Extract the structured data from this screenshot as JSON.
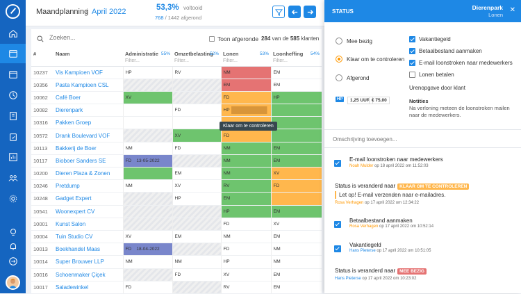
{
  "topbar": {
    "title": "Maandplanning",
    "separator": "/",
    "month": "April 2022",
    "percent": "53,3%",
    "percent_label": "voltooid",
    "done_count": "768",
    "total_label": "/ 1442 afgerond"
  },
  "list": {
    "search_placeholder": "Zoeken...",
    "show_done_label": "Toon afgeronde",
    "result_shown": "284",
    "result_mid": "van de",
    "result_total": "585",
    "result_unit": "klanten",
    "columns": {
      "num": "#",
      "name": "Naam",
      "admin": "Administratie",
      "admin_pct": "55%",
      "omzet": "Omzetbelasting",
      "omzet_pct": "52%",
      "lonen": "Lonen",
      "lonen_pct": "53%",
      "loonheffing": "Loonheffing",
      "loonheffing_pct": "54%",
      "filter": "Filter..."
    },
    "rows": [
      {
        "num": "10237",
        "name": "Vis Kampioen VOF",
        "c": [
          {
            "t": "HP"
          },
          {
            "t": "RV"
          },
          {
            "t": "NM",
            "s": "r"
          },
          {
            "t": "EM"
          }
        ]
      },
      {
        "num": "10356",
        "name": "Pasta Kampioen CSL",
        "c": [
          {
            "t": "",
            "s": "h"
          },
          {
            "t": "",
            "s": "h"
          },
          {
            "t": "EM",
            "s": "r"
          },
          {
            "t": "EM"
          }
        ]
      },
      {
        "num": "10062",
        "name": "Café Boer",
        "c": [
          {
            "t": "XV",
            "s": "g"
          },
          {
            "t": "",
            "s": "h"
          },
          {
            "t": "FD",
            "s": "o"
          },
          {
            "t": "HP",
            "s": "g"
          }
        ]
      },
      {
        "num": "10082",
        "name": "Dierenpark",
        "c": [
          {
            "t": ""
          },
          {
            "t": "FD"
          },
          {
            "t": "HP",
            "s": "o"
          },
          {
            "t": "",
            "s": "g"
          }
        ]
      },
      {
        "num": "10316",
        "name": "Pakken Groep",
        "c": [
          {
            "t": ""
          },
          {
            "t": ""
          },
          {
            "t": "",
            "s": "o"
          },
          {
            "t": "",
            "s": "g"
          }
        ]
      },
      {
        "num": "10572",
        "name": "Drank Boulevard VOF",
        "c": [
          {
            "t": "",
            "s": "h"
          },
          {
            "t": "XV",
            "s": "g"
          },
          {
            "t": "FD",
            "s": "o"
          },
          {
            "t": "",
            "s": "g"
          }
        ]
      },
      {
        "num": "10113",
        "name": "Bakkerij de Boer",
        "c": [
          {
            "t": "NM"
          },
          {
            "t": "FD"
          },
          {
            "t": "NM",
            "s": "g"
          },
          {
            "t": "EM",
            "s": "g"
          }
        ]
      },
      {
        "num": "10117",
        "name": "Bioboer Sanders SE",
        "c": [
          {
            "t": "FD",
            "d": "13-05-2022",
            "s": "p"
          },
          {
            "t": "",
            "s": "h"
          },
          {
            "t": "NM",
            "s": "g"
          },
          {
            "t": "EM",
            "s": "g"
          }
        ]
      },
      {
        "num": "10200",
        "name": "Dieren Plaza & Zonen",
        "c": [
          {
            "t": "",
            "s": "g"
          },
          {
            "t": "EM"
          },
          {
            "t": "NM",
            "s": "g"
          },
          {
            "t": "XV",
            "s": "o"
          }
        ]
      },
      {
        "num": "10246",
        "name": "Pretdump",
        "c": [
          {
            "t": "NM"
          },
          {
            "t": "XV"
          },
          {
            "t": "RV",
            "s": "g"
          },
          {
            "t": "FD",
            "s": "o"
          }
        ]
      },
      {
        "num": "10248",
        "name": "Gadget Expert",
        "c": [
          {
            "t": "",
            "s": "h"
          },
          {
            "t": "HP"
          },
          {
            "t": "EM",
            "s": "g"
          },
          {
            "t": "",
            "s": "o"
          }
        ]
      },
      {
        "num": "10541",
        "name": "Woonexpert CV",
        "c": [
          {
            "t": "",
            "s": "h"
          },
          {
            "t": "",
            "s": "h"
          },
          {
            "t": "HP",
            "s": "g"
          },
          {
            "t": "EM",
            "s": "g"
          }
        ]
      },
      {
        "num": "10001",
        "name": "Kunst Salon",
        "c": [
          {
            "t": "",
            "s": "h"
          },
          {
            "t": "",
            "s": "h"
          },
          {
            "t": "FD"
          },
          {
            "t": "XV"
          }
        ]
      },
      {
        "num": "10004",
        "name": "Tuin Studio CV",
        "c": [
          {
            "t": "XV"
          },
          {
            "t": "EM"
          },
          {
            "t": "NM"
          },
          {
            "t": "EM"
          }
        ]
      },
      {
        "num": "10013",
        "name": "Boekhandel Maas",
        "c": [
          {
            "t": "FD",
            "d": "18-04-2022",
            "s": "p"
          },
          {
            "t": "",
            "s": "h"
          },
          {
            "t": "FD"
          },
          {
            "t": "NM"
          }
        ]
      },
      {
        "num": "10014",
        "name": "Super Brouwer LLP",
        "c": [
          {
            "t": "NM"
          },
          {
            "t": "NM"
          },
          {
            "t": "HP"
          },
          {
            "t": "NM"
          }
        ]
      },
      {
        "num": "10016",
        "name": "Schoenmaker Çiçek",
        "c": [
          {
            "t": "",
            "s": "h"
          },
          {
            "t": "FD"
          },
          {
            "t": "XV"
          },
          {
            "t": "EM"
          }
        ]
      },
      {
        "num": "10017",
        "name": "Saladewinkel",
        "c": [
          {
            "t": "FD"
          },
          {
            "t": "",
            "s": "h"
          },
          {
            "t": "RV"
          },
          {
            "t": "EM"
          }
        ]
      }
    ],
    "tooltip": "Klaar om te controleren"
  },
  "panel": {
    "title": "STATUS",
    "client": "Dierenpark",
    "subtitle": "Lonen",
    "statuses": [
      "Mee bezig",
      "Klaar om te controleren",
      "Afgerond"
    ],
    "hours_badge": "HP",
    "hours": "1,25 UUR",
    "amount": "€ 75,00",
    "checklist": [
      {
        "label": "Vakantiegeld",
        "checked": true
      },
      {
        "label": "Betaalbestand aanmaken",
        "checked": true
      },
      {
        "label": "E-mail loonstroken naar medewerkers",
        "checked": true
      },
      {
        "label": "Lonen betalen",
        "checked": false
      }
    ],
    "checklist_title": "Urenopgave door klant",
    "notes_title": "Notities",
    "notes_text": "Na verloning meteen de loonstroken mailen naar de medewerkers.",
    "desc_placeholder": "Omschrijving toevoegen...",
    "activity": [
      {
        "title": "E-mail loonstroken naar medewerkers",
        "who": "Noah Mulder",
        "when": "op 18 april 2022 om 11:52:03"
      },
      {
        "prefix": "Status is veranderd naar",
        "badge": "KLAAR OM TE CONTROLEREN",
        "badge_color": "#ffb74d",
        "msg": "Let op! E-mail verzenden naar e-mailadres.",
        "who": "Rosa Verhagen",
        "when": "op 17 april 2022 om 12:34:22"
      },
      {
        "title": "Betaalbestand aanmaken",
        "who": "Rosa Verhagen",
        "when": "op 17 april 2022 om 10:52:14"
      },
      {
        "title": "Vakantiegeld",
        "who": "Hans Pieterse",
        "when": "op 17 april 2022 om 10:51:05"
      },
      {
        "prefix": "Status is veranderd naar",
        "badge": "MEE BEZIG",
        "badge_color": "#e57373",
        "who": "Hans Pieterse",
        "when": "op 17 april 2022 om 10:23:02"
      }
    ]
  },
  "colors": {
    "accent": "#1e88e5",
    "sidebar": "#1565c0",
    "green": "#6ec46e",
    "red": "#e57373",
    "orange": "#ffb74d",
    "purple": "#7986cb"
  }
}
